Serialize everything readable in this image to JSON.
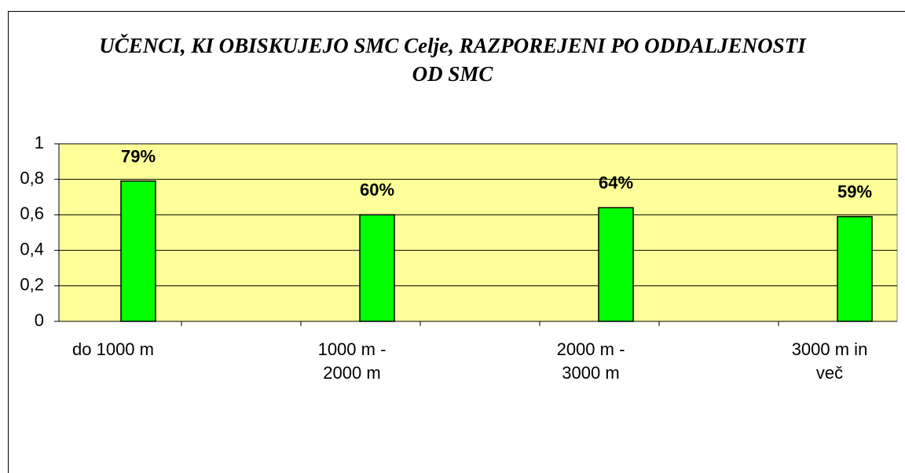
{
  "chart_data": {
    "type": "bar",
    "title": "UČENCI, KI OBISKUJEJO SMC Celje, RAZPOREJENI PO ODDALJENOSTI OD SMC",
    "categories": [
      "do 1000 m",
      "1000 m - 2000 m",
      "2000 m - 3000 m",
      "3000 m in več"
    ],
    "values": [
      0.79,
      0.6,
      0.64,
      0.59
    ],
    "value_labels": [
      "79%",
      "60%",
      "64%",
      "59%"
    ],
    "color": "#00ff00",
    "ylim": [
      0,
      1
    ],
    "yticks": [
      0,
      {
        "value": 0.2,
        "label": "0,2"
      },
      {
        "value": 0.4,
        "label": "0,4"
      },
      {
        "value": 0.6,
        "label": "0,6"
      },
      {
        "value": 0.8,
        "label": "0,8"
      },
      1
    ],
    "grid": true
  }
}
